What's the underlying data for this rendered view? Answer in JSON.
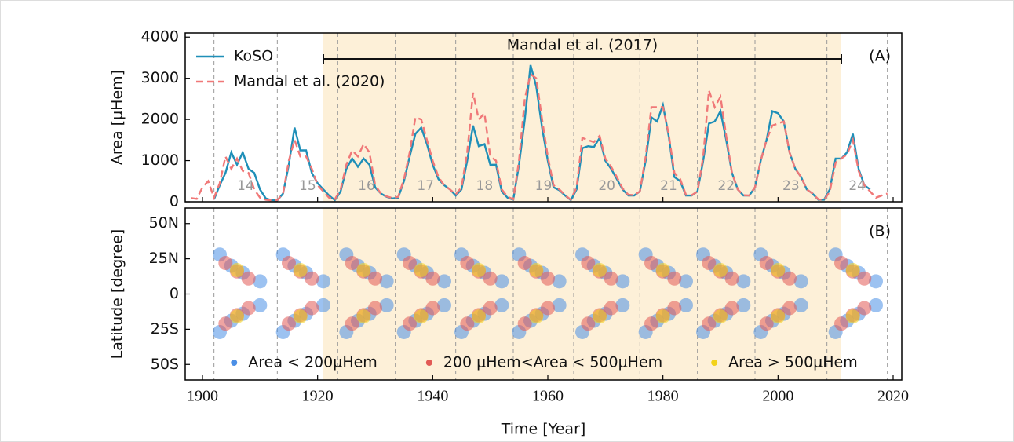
{
  "chart_data": [
    {
      "type": "line",
      "panel_label": "(A)",
      "ylabel": "Area [μHem]",
      "legend": "upper left",
      "annotation": "Mandal et al. (2017)",
      "span": [
        1921,
        2011
      ],
      "cycle_minima": [
        1902,
        1913,
        1923.5,
        1933.5,
        1944,
        1954,
        1964.5,
        1976,
        1986,
        1996,
        2008.5,
        2019
      ],
      "cycle_labels": [
        "14",
        "15",
        "16",
        "17",
        "18",
        "19",
        "20",
        "21",
        "22",
        "23",
        "24"
      ],
      "xlim": [
        1897,
        2021.5
      ],
      "ylim": [
        0,
        4100
      ],
      "yticks": [
        0,
        1000,
        2000,
        3000,
        4000
      ],
      "x": [
        1898,
        1899,
        1900,
        1901,
        1902,
        1903,
        1904,
        1905,
        1906,
        1907,
        1908,
        1909,
        1910,
        1911,
        1912,
        1913,
        1914,
        1915,
        1916,
        1917,
        1918,
        1919,
        1920,
        1921,
        1922,
        1923,
        1924,
        1925,
        1926,
        1927,
        1928,
        1929,
        1930,
        1931,
        1932,
        1933,
        1934,
        1935,
        1936,
        1937,
        1938,
        1939,
        1940,
        1941,
        1942,
        1943,
        1944,
        1945,
        1946,
        1947,
        1948,
        1949,
        1950,
        1951,
        1952,
        1953,
        1954,
        1955,
        1956,
        1957,
        1958,
        1959,
        1960,
        1961,
        1962,
        1963,
        1964,
        1965,
        1966,
        1967,
        1968,
        1969,
        1970,
        1971,
        1972,
        1973,
        1974,
        1975,
        1976,
        1977,
        1978,
        1979,
        1980,
        1981,
        1982,
        1983,
        1984,
        1985,
        1986,
        1987,
        1988,
        1989,
        1990,
        1991,
        1992,
        1993,
        1994,
        1995,
        1996,
        1997,
        1998,
        1999,
        2000,
        2001,
        2002,
        2003,
        2004,
        2005,
        2006,
        2007,
        2008,
        2009,
        2010,
        2011,
        2012,
        2013,
        2014,
        2015,
        2016,
        2017,
        2018,
        2019
      ],
      "series": [
        {
          "name": "KoSO",
          "color": "#1f8fb8",
          "dashed": false,
          "values": [
            null,
            null,
            null,
            null,
            60,
            400,
            700,
            1200,
            900,
            1200,
            800,
            700,
            300,
            80,
            40,
            30,
            200,
            900,
            1800,
            1250,
            1250,
            700,
            450,
            300,
            150,
            40,
            250,
            800,
            1050,
            850,
            1050,
            900,
            350,
            200,
            120,
            80,
            100,
            500,
            1100,
            1650,
            1800,
            1400,
            900,
            550,
            400,
            300,
            150,
            300,
            1000,
            1850,
            1350,
            1400,
            900,
            900,
            250,
            100,
            50,
            900,
            2000,
            3320,
            2800,
            1800,
            1000,
            350,
            280,
            150,
            40,
            300,
            1300,
            1350,
            1330,
            1550,
            1000,
            800,
            550,
            300,
            150,
            150,
            250,
            1000,
            2050,
            1950,
            2350,
            1600,
            600,
            500,
            150,
            150,
            250,
            1000,
            1900,
            1950,
            2200,
            1500,
            700,
            300,
            150,
            150,
            350,
            1000,
            1500,
            2200,
            2150,
            1950,
            1200,
            800,
            600,
            300,
            200,
            50,
            50,
            300,
            1050,
            1050,
            1200,
            1650,
            800,
            400,
            300,
            null,
            null,
            null
          ]
        },
        {
          "name": "Mandal et al. (2020)",
          "color": "#f07878",
          "dashed": true,
          "values": [
            90,
            70,
            350,
            500,
            100,
            450,
            1100,
            800,
            1050,
            750,
            700,
            300,
            100,
            50,
            30,
            40,
            200,
            1000,
            1500,
            1100,
            1100,
            800,
            400,
            250,
            100,
            60,
            300,
            900,
            1250,
            1100,
            1400,
            1200,
            400,
            200,
            130,
            90,
            120,
            550,
            1200,
            2050,
            2000,
            1500,
            1000,
            600,
            400,
            300,
            180,
            350,
            1200,
            2650,
            2000,
            2150,
            1100,
            1000,
            300,
            120,
            60,
            1000,
            2500,
            3100,
            3000,
            2000,
            1100,
            400,
            300,
            160,
            50,
            350,
            1550,
            1500,
            1450,
            1600,
            1050,
            850,
            600,
            320,
            170,
            160,
            250,
            1100,
            2300,
            2300,
            2300,
            1650,
            700,
            550,
            170,
            160,
            250,
            1100,
            2700,
            2300,
            2550,
            1600,
            700,
            300,
            160,
            150,
            350,
            1000,
            1500,
            1850,
            1900,
            1950,
            1200,
            800,
            600,
            300,
            200,
            60,
            40,
            250,
            950,
            1050,
            1150,
            1500,
            750,
            400,
            250,
            100,
            150,
            200
          ]
        }
      ]
    },
    {
      "type": "scatter",
      "panel_label": "(B)",
      "ylabel": "Latitude [degree]",
      "xlabel": "Time [Year]",
      "legend": "lower center",
      "xlim": [
        1897,
        2021.5
      ],
      "ylim": [
        -61,
        61
      ],
      "xticks": [
        1900,
        1920,
        1940,
        1960,
        1980,
        2000,
        2020
      ],
      "yticks": [
        {
          "value": -50,
          "label": "50S"
        },
        {
          "value": -25,
          "label": "25S"
        },
        0,
        {
          "value": 25,
          "label": "25N"
        },
        {
          "value": 50,
          "label": "50N"
        }
      ],
      "series": [
        {
          "name": "Area < 200μHem",
          "color": "#4b8fe6",
          "x": [
            1903,
            1905,
            1907,
            1910,
            1903,
            1905,
            1907,
            1910,
            1914,
            1916,
            1918,
            1921,
            1914,
            1916,
            1918,
            1921,
            1925,
            1927,
            1929,
            1932,
            1925,
            1927,
            1929,
            1932,
            1935,
            1937,
            1939,
            1942,
            1935,
            1937,
            1939,
            1942,
            1945,
            1947,
            1949,
            1952,
            1945,
            1947,
            1949,
            1952,
            1955,
            1957,
            1959,
            1962,
            1955,
            1957,
            1959,
            1962,
            1966,
            1968,
            1970,
            1973,
            1966,
            1968,
            1970,
            1973,
            1977,
            1979,
            1981,
            1984,
            1977,
            1979,
            1981,
            1984,
            1987,
            1989,
            1991,
            1994,
            1987,
            1989,
            1991,
            1994,
            1997,
            1999,
            2001,
            2004,
            1997,
            1999,
            2001,
            2004,
            2010,
            2012,
            2014,
            2017,
            2010,
            2012,
            2014,
            2017
          ],
          "y": [
            28,
            20,
            15,
            9,
            -27,
            -19,
            -14,
            -8,
            28,
            20,
            15,
            9,
            -27,
            -19,
            -14,
            -8,
            28,
            20,
            15,
            9,
            -27,
            -19,
            -14,
            -8,
            28,
            20,
            15,
            9,
            -27,
            -19,
            -14,
            -8,
            28,
            20,
            15,
            9,
            -27,
            -19,
            -14,
            -8,
            28,
            20,
            15,
            9,
            -27,
            -19,
            -14,
            -8,
            28,
            20,
            15,
            9,
            -27,
            -19,
            -14,
            -8,
            28,
            20,
            15,
            9,
            -27,
            -19,
            -14,
            -8,
            28,
            20,
            15,
            9,
            -27,
            -19,
            -14,
            -8,
            28,
            20,
            15,
            9,
            -27,
            -19,
            -14,
            -8,
            28,
            20,
            15,
            9,
            -27,
            -19,
            -14,
            -8
          ]
        },
        {
          "name": "200 μHem<Area < 500μHem",
          "color": "#e25a55",
          "x": [
            1904,
            1906,
            1908,
            1904,
            1906,
            1908,
            1915,
            1917,
            1919,
            1915,
            1917,
            1919,
            1926,
            1928,
            1930,
            1926,
            1928,
            1930,
            1936,
            1938,
            1940,
            1936,
            1938,
            1940,
            1946,
            1948,
            1950,
            1946,
            1948,
            1950,
            1956,
            1958,
            1960,
            1956,
            1958,
            1960,
            1967,
            1969,
            1971,
            1967,
            1969,
            1971,
            1978,
            1980,
            1982,
            1978,
            1980,
            1982,
            1988,
            1990,
            1992,
            1988,
            1990,
            1992,
            1998,
            2000,
            2002,
            1998,
            2000,
            2002,
            2011,
            2013,
            2015,
            2011,
            2013,
            2015
          ],
          "y": [
            22,
            16,
            11,
            -21,
            -15,
            -10,
            22,
            16,
            11,
            -21,
            -15,
            -10,
            22,
            16,
            11,
            -21,
            -15,
            -10,
            22,
            16,
            11,
            -21,
            -15,
            -10,
            22,
            16,
            11,
            -21,
            -15,
            -10,
            22,
            16,
            11,
            -21,
            -15,
            -10,
            22,
            16,
            11,
            -21,
            -15,
            -10,
            22,
            16,
            11,
            -21,
            -15,
            -10,
            22,
            16,
            11,
            -21,
            -15,
            -10,
            22,
            16,
            11,
            -21,
            -15,
            -10,
            22,
            16,
            11,
            -21,
            -15,
            -10
          ]
        },
        {
          "name": "Area > 500μHem",
          "color": "#f2d21a",
          "x": [
            1906,
            1906,
            1917,
            1917,
            1928,
            1928,
            1938,
            1938,
            1948,
            1948,
            1958,
            1958,
            1969,
            1969,
            1980,
            1980,
            1990,
            1990,
            2000,
            2000,
            2013,
            2013
          ],
          "y": [
            17,
            -16,
            17,
            -16,
            17,
            -16,
            17,
            -16,
            17,
            -16,
            17,
            -16,
            17,
            -16,
            17,
            -16,
            17,
            -16,
            17,
            -16,
            17,
            -16
          ]
        }
      ]
    }
  ]
}
